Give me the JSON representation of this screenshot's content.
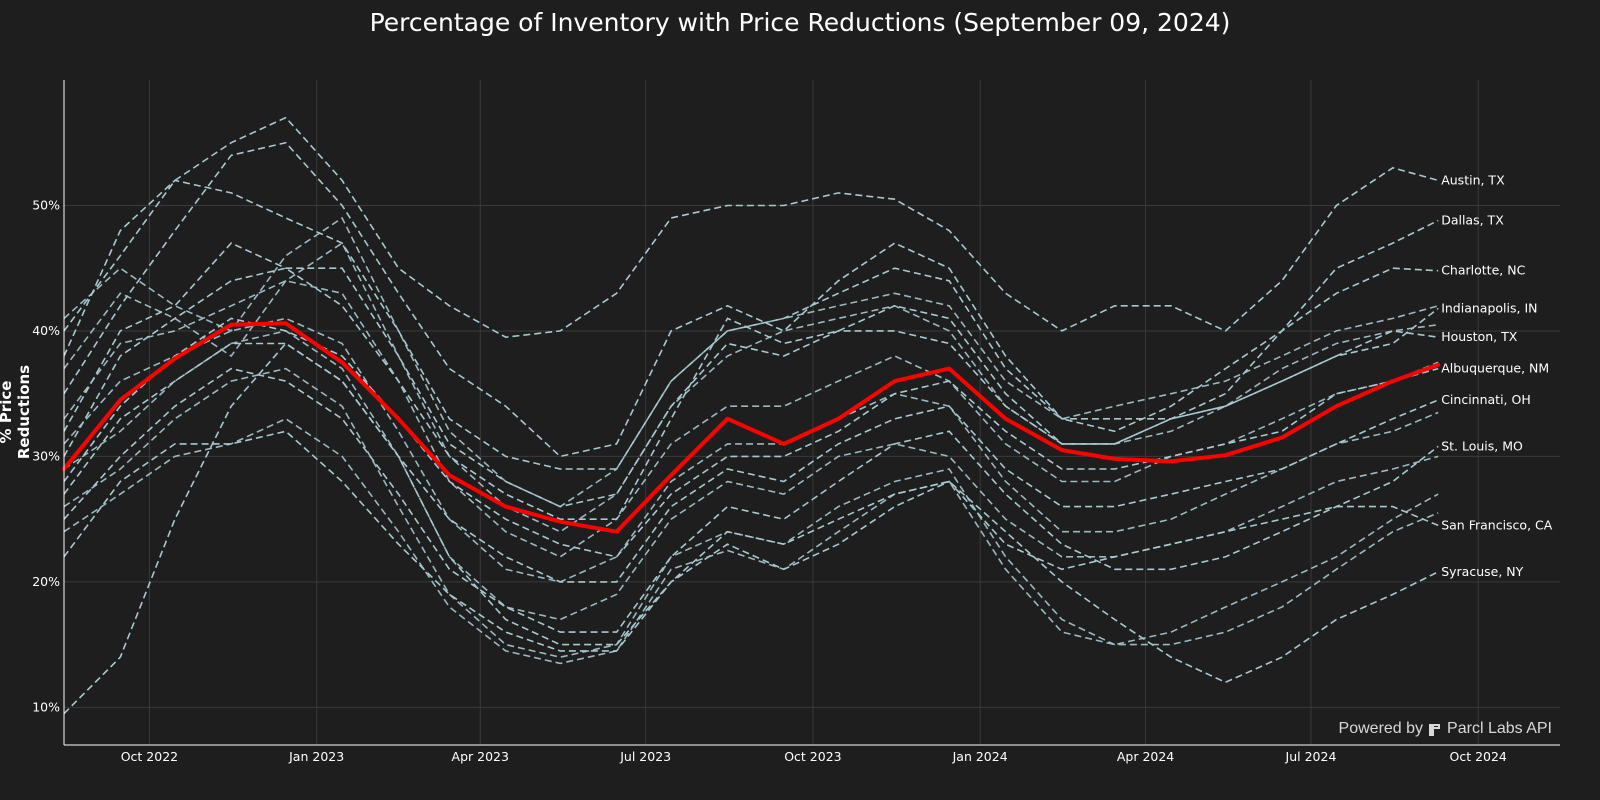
{
  "chart_data": {
    "type": "line",
    "title": "Percentage of Inventory with Price Reductions (September 09, 2024)",
    "ylabel": "% Price Reductions",
    "xlabel": "",
    "ylim": [
      7,
      60
    ],
    "xlim": [
      "2022-08-15",
      "2024-11-15"
    ],
    "grid": true,
    "x_ticks": [
      {
        "date": "2022-10-01",
        "label": "Oct 2022"
      },
      {
        "date": "2023-01-01",
        "label": "Jan 2023"
      },
      {
        "date": "2023-04-01",
        "label": "Apr 2023"
      },
      {
        "date": "2023-07-01",
        "label": "Jul 2023"
      },
      {
        "date": "2023-10-01",
        "label": "Oct 2023"
      },
      {
        "date": "2024-01-01",
        "label": "Jan 2024"
      },
      {
        "date": "2024-04-01",
        "label": "Apr 2024"
      },
      {
        "date": "2024-07-01",
        "label": "Jul 2024"
      },
      {
        "date": "2024-10-01",
        "label": "Oct 2024"
      }
    ],
    "y_ticks": [
      {
        "value": 10,
        "label": "10%"
      },
      {
        "value": 20,
        "label": "20%"
      },
      {
        "value": 30,
        "label": "30%"
      },
      {
        "value": 40,
        "label": "40%"
      },
      {
        "value": 50,
        "label": "50%"
      }
    ],
    "dates": [
      "2022-08-15",
      "2022-09-15",
      "2022-10-15",
      "2022-11-15",
      "2022-12-15",
      "2023-01-15",
      "2023-02-15",
      "2023-03-15",
      "2023-04-15",
      "2023-05-15",
      "2023-06-15",
      "2023-07-15",
      "2023-08-15",
      "2023-09-15",
      "2023-10-15",
      "2023-11-15",
      "2023-12-15",
      "2024-01-15",
      "2024-02-15",
      "2024-03-15",
      "2024-04-15",
      "2024-05-15",
      "2024-06-15",
      "2024-07-15",
      "2024-08-15",
      "2024-09-09"
    ],
    "highlight_series": {
      "color": "#ff0000",
      "values": [
        29.0,
        34.5,
        37.8,
        40.5,
        40.6,
        37.5,
        33.0,
        28.5,
        26.0,
        24.8,
        24.0,
        28.5,
        33.0,
        31.0,
        33.0,
        36.0,
        37.0,
        33.0,
        30.5,
        29.8,
        29.6,
        30.1,
        31.5,
        34.0,
        36.0,
        37.3
      ]
    },
    "series_color": "#a8c8d0",
    "series": [
      {
        "name": "Austin, TX",
        "values": [
          40.0,
          46.0,
          52.0,
          55.0,
          57.0,
          52.0,
          45.0,
          42.0,
          39.5,
          40.0,
          43.0,
          49.0,
          50.0,
          50.0,
          51.0,
          50.5,
          48.0,
          43.0,
          40.0,
          42.0,
          42.0,
          40.0,
          44.0,
          50.0,
          53.0,
          52.0
        ]
      },
      {
        "name": "Dallas, TX",
        "values": [
          35.0,
          42.0,
          48.0,
          54.0,
          55.0,
          50.0,
          43.0,
          37.0,
          34.0,
          30.0,
          31.0,
          40.0,
          42.0,
          40.0,
          44.0,
          47.0,
          45.0,
          38.0,
          33.0,
          33.0,
          33.0,
          35.0,
          40.0,
          45.0,
          47.0,
          48.8
        ]
      },
      {
        "name": "Charlotte, NC",
        "values": [
          38.0,
          48.0,
          52.0,
          51.0,
          49.0,
          47.0,
          40.0,
          33.0,
          30.0,
          29.0,
          29.0,
          36.0,
          40.0,
          41.0,
          43.0,
          45.0,
          44.0,
          37.0,
          33.0,
          32.0,
          34.0,
          37.0,
          40.0,
          43.0,
          45.0,
          44.8
        ]
      },
      {
        "name": "Indianapolis, IN",
        "values": [
          30.0,
          38.0,
          41.0,
          44.0,
          45.0,
          42.0,
          36.0,
          30.0,
          27.0,
          25.0,
          25.0,
          33.0,
          41.0,
          39.0,
          40.0,
          42.0,
          41.0,
          35.0,
          31.0,
          31.0,
          33.0,
          34.0,
          36.0,
          38.0,
          39.0,
          41.8
        ]
      },
      {
        "name": "Houston, TX",
        "values": [
          32.0,
          40.0,
          42.0,
          47.0,
          45.0,
          45.0,
          38.0,
          31.0,
          28.0,
          26.0,
          27.0,
          34.0,
          39.0,
          38.0,
          40.0,
          40.0,
          39.0,
          34.0,
          31.0,
          31.0,
          33.0,
          34.0,
          36.0,
          38.0,
          40.0,
          39.5
        ]
      },
      {
        "name": "Albuquerque, NM",
        "values": [
          28.0,
          34.0,
          38.0,
          41.0,
          40.0,
          38.0,
          33.0,
          28.0,
          25.0,
          23.0,
          22.0,
          27.0,
          30.0,
          30.0,
          32.0,
          35.0,
          36.0,
          32.0,
          29.0,
          29.0,
          30.0,
          31.0,
          32.0,
          35.0,
          36.0,
          37.0
        ]
      },
      {
        "name": "Cincinnati, OH",
        "values": [
          27.0,
          33.0,
          36.0,
          39.0,
          39.0,
          36.0,
          30.0,
          25.0,
          22.0,
          20.0,
          20.0,
          26.0,
          29.0,
          28.0,
          31.0,
          33.0,
          34.0,
          29.0,
          26.0,
          26.0,
          27.0,
          28.0,
          29.0,
          31.0,
          33.0,
          34.5
        ]
      },
      {
        "name": "St. Louis, MO",
        "values": [
          25.0,
          30.0,
          34.0,
          37.0,
          36.0,
          33.0,
          27.0,
          21.0,
          18.0,
          16.0,
          16.0,
          22.0,
          26.0,
          25.0,
          28.0,
          31.0,
          32.0,
          27.0,
          23.0,
          21.0,
          21.0,
          22.0,
          24.0,
          26.0,
          28.0,
          30.8
        ]
      },
      {
        "name": "San Francisco, CA",
        "values": [
          22.0,
          28.0,
          31.0,
          31.0,
          32.0,
          28.0,
          23.0,
          19.0,
          16.0,
          14.5,
          14.5,
          20.0,
          23.0,
          21.0,
          23.0,
          26.0,
          28.0,
          23.0,
          21.0,
          22.0,
          23.0,
          24.0,
          25.0,
          26.0,
          26.0,
          24.5
        ]
      },
      {
        "name": "Syracuse, NY",
        "values": [
          9.5,
          14.0,
          25.0,
          34.0,
          39.0,
          36.0,
          30.0,
          22.0,
          17.0,
          15.0,
          15.0,
          20.0,
          24.0,
          23.0,
          25.0,
          27.0,
          28.0,
          24.0,
          20.0,
          17.0,
          14.0,
          12.0,
          14.0,
          17.0,
          19.0,
          20.8
        ]
      }
    ],
    "extra_series_unlabeled": [
      {
        "values": [
          41.0,
          45.0,
          42.0,
          40.0,
          46.0,
          49.0,
          40.0,
          32.0,
          28.0,
          26.0,
          29.0,
          36.0,
          40.0,
          41.0,
          42.0,
          43.0,
          42.0,
          36.0,
          33.0,
          34.0,
          35.0,
          36.0,
          38.0,
          40.0,
          41.0,
          42.0
        ]
      },
      {
        "values": [
          37.0,
          43.0,
          41.0,
          38.0,
          44.0,
          47.0,
          38.0,
          30.0,
          26.0,
          24.0,
          27.0,
          34.0,
          38.0,
          40.0,
          41.0,
          42.0,
          40.0,
          34.0,
          31.0,
          31.0,
          32.0,
          34.0,
          37.0,
          39.0,
          40.0,
          40.5
        ]
      },
      {
        "values": [
          33.0,
          39.0,
          40.0,
          42.0,
          44.0,
          43.0,
          36.0,
          28.0,
          24.0,
          22.0,
          25.0,
          31.0,
          34.0,
          34.0,
          36.0,
          38.0,
          36.0,
          31.0,
          28.0,
          28.0,
          30.0,
          31.0,
          33.0,
          35.0,
          36.0,
          37.5
        ]
      },
      {
        "values": [
          31.0,
          36.0,
          38.0,
          40.0,
          41.0,
          39.0,
          32.0,
          25.0,
          21.0,
          20.0,
          22.0,
          28.0,
          31.0,
          31.0,
          33.0,
          35.0,
          34.0,
          28.0,
          24.0,
          24.0,
          25.0,
          27.0,
          29.0,
          31.0,
          32.0,
          33.5
        ]
      },
      {
        "values": [
          29.0,
          32.0,
          36.0,
          39.0,
          40.0,
          37.0,
          30.0,
          22.0,
          18.0,
          17.0,
          19.0,
          25.0,
          28.0,
          27.0,
          30.0,
          31.0,
          30.0,
          25.0,
          22.0,
          22.0,
          23.0,
          24.0,
          26.0,
          28.0,
          29.0,
          30.0
        ]
      },
      {
        "values": [
          26.0,
          29.0,
          33.0,
          36.0,
          37.0,
          34.0,
          26.0,
          19.0,
          15.0,
          14.0,
          15.0,
          22.0,
          24.0,
          23.0,
          26.0,
          28.0,
          29.0,
          22.0,
          17.0,
          15.0,
          15.0,
          16.0,
          18.0,
          21.0,
          24.0,
          25.5
        ]
      },
      {
        "values": [
          24.0,
          27.0,
          30.0,
          31.0,
          33.0,
          30.0,
          24.0,
          18.0,
          14.5,
          13.5,
          14.5,
          21.0,
          22.5,
          21.0,
          24.0,
          27.0,
          28.0,
          21.0,
          16.0,
          15.0,
          16.0,
          18.0,
          20.0,
          22.0,
          25.0,
          27.0
        ]
      }
    ]
  },
  "watermark": {
    "prefix": "Powered by",
    "brand": "Parcl Labs API"
  }
}
